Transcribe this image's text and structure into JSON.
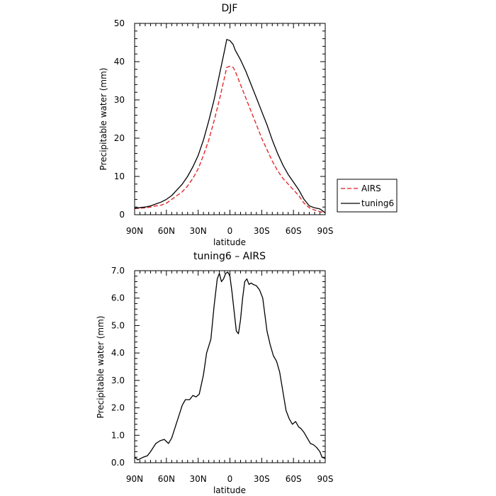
{
  "chart_data": [
    {
      "type": "line",
      "title": "DJF",
      "xlabel": "latitude",
      "ylabel": "Precipitable water (mm)",
      "xlim": [
        -90,
        90
      ],
      "ylim": [
        0,
        50
      ],
      "x_ticks": [
        -90,
        -60,
        -30,
        0,
        30,
        60,
        90
      ],
      "x_tick_labels": [
        "90N",
        "60N",
        "30N",
        "0",
        "30S",
        "60S",
        "90S"
      ],
      "y_ticks": [
        0,
        10,
        20,
        30,
        40,
        50
      ],
      "y_tick_labels": [
        "0",
        "10",
        "20",
        "30",
        "40",
        "50"
      ],
      "legend": "right",
      "series": [
        {
          "name": "AIRS",
          "color": "#e41a1c",
          "dash": "dashed",
          "x": [
            -90,
            -80,
            -75,
            -70,
            -65,
            -60,
            -55,
            -50,
            -45,
            -40,
            -35,
            -30,
            -25,
            -20,
            -15,
            -10,
            -5,
            -3,
            0,
            3,
            5,
            10,
            15,
            20,
            25,
            30,
            35,
            40,
            45,
            50,
            55,
            60,
            65,
            70,
            75,
            80,
            85,
            90
          ],
          "y": [
            1.6,
            1.8,
            2.0,
            2.3,
            2.5,
            3.0,
            4.0,
            5.0,
            6.0,
            7.5,
            9.5,
            12.0,
            15.5,
            19.5,
            24.5,
            30.0,
            36.0,
            38.5,
            38.8,
            38.5,
            37.5,
            34.0,
            30.5,
            27.0,
            23.5,
            20.0,
            17.0,
            14.0,
            11.5,
            9.5,
            8.0,
            6.5,
            5.0,
            3.0,
            1.8,
            1.2,
            0.8,
            0.5
          ]
        },
        {
          "name": "tuning6",
          "color": "#000000",
          "dash": "solid",
          "x": [
            -90,
            -80,
            -75,
            -70,
            -65,
            -60,
            -55,
            -50,
            -45,
            -40,
            -35,
            -30,
            -25,
            -20,
            -15,
            -10,
            -5,
            -3,
            0,
            3,
            5,
            10,
            15,
            20,
            25,
            30,
            35,
            40,
            45,
            50,
            55,
            60,
            65,
            70,
            75,
            80,
            85,
            90
          ],
          "y": [
            1.7,
            2.0,
            2.3,
            2.8,
            3.3,
            4.0,
            5.0,
            6.5,
            8.0,
            10.0,
            12.5,
            15.5,
            19.5,
            24.5,
            30.0,
            36.5,
            43.0,
            45.8,
            45.5,
            44.5,
            43.0,
            40.5,
            37.5,
            34.0,
            30.5,
            27.0,
            23.5,
            19.5,
            16.0,
            13.0,
            10.5,
            8.5,
            6.5,
            4.0,
            2.3,
            1.8,
            1.5,
            0.5
          ]
        }
      ]
    },
    {
      "type": "line",
      "title": "tuning6 – AIRS",
      "xlabel": "latitude",
      "ylabel": "Precipitable water (mm)",
      "xlim": [
        -90,
        90
      ],
      "ylim": [
        0,
        7
      ],
      "x_ticks": [
        -90,
        -60,
        -30,
        0,
        30,
        60,
        90
      ],
      "x_tick_labels": [
        "90N",
        "60N",
        "30N",
        "0",
        "30S",
        "60S",
        "90S"
      ],
      "y_ticks": [
        0,
        1,
        2,
        3,
        4,
        5,
        6,
        7
      ],
      "y_tick_labels": [
        "0.0",
        "1.0",
        "2.0",
        "3.0",
        "4.0",
        "5.0",
        "6.0",
        "7.0"
      ],
      "series": [
        {
          "name": "",
          "color": "#000000",
          "dash": "solid",
          "x": [
            -90,
            -87,
            -82,
            -78,
            -75,
            -70,
            -66,
            -62,
            -58,
            -55,
            -50,
            -45,
            -42,
            -38,
            -35,
            -32,
            -29,
            -25,
            -22,
            -18,
            -15,
            -12,
            -10,
            -8,
            -6,
            -4,
            -2,
            0,
            2,
            4,
            6,
            8,
            10,
            12,
            14,
            16,
            18,
            20,
            22,
            25,
            28,
            31,
            33,
            35,
            38,
            41,
            44,
            47,
            50,
            53,
            56,
            59,
            62,
            65,
            67,
            70,
            73,
            76,
            79,
            82,
            85,
            87,
            90
          ],
          "y": [
            0.2,
            0.1,
            0.2,
            0.25,
            0.4,
            0.7,
            0.8,
            0.85,
            0.7,
            0.9,
            1.5,
            2.1,
            2.3,
            2.3,
            2.45,
            2.4,
            2.5,
            3.2,
            4.0,
            4.5,
            5.7,
            6.7,
            6.9,
            6.6,
            6.7,
            6.9,
            6.95,
            6.8,
            6.2,
            5.5,
            4.8,
            4.7,
            5.2,
            6.0,
            6.6,
            6.7,
            6.5,
            6.55,
            6.5,
            6.45,
            6.3,
            6.0,
            5.4,
            4.8,
            4.3,
            3.9,
            3.7,
            3.3,
            2.6,
            1.9,
            1.6,
            1.4,
            1.5,
            1.3,
            1.25,
            1.1,
            0.9,
            0.7,
            0.65,
            0.55,
            0.4,
            0.2,
            0.15
          ]
        }
      ]
    }
  ]
}
